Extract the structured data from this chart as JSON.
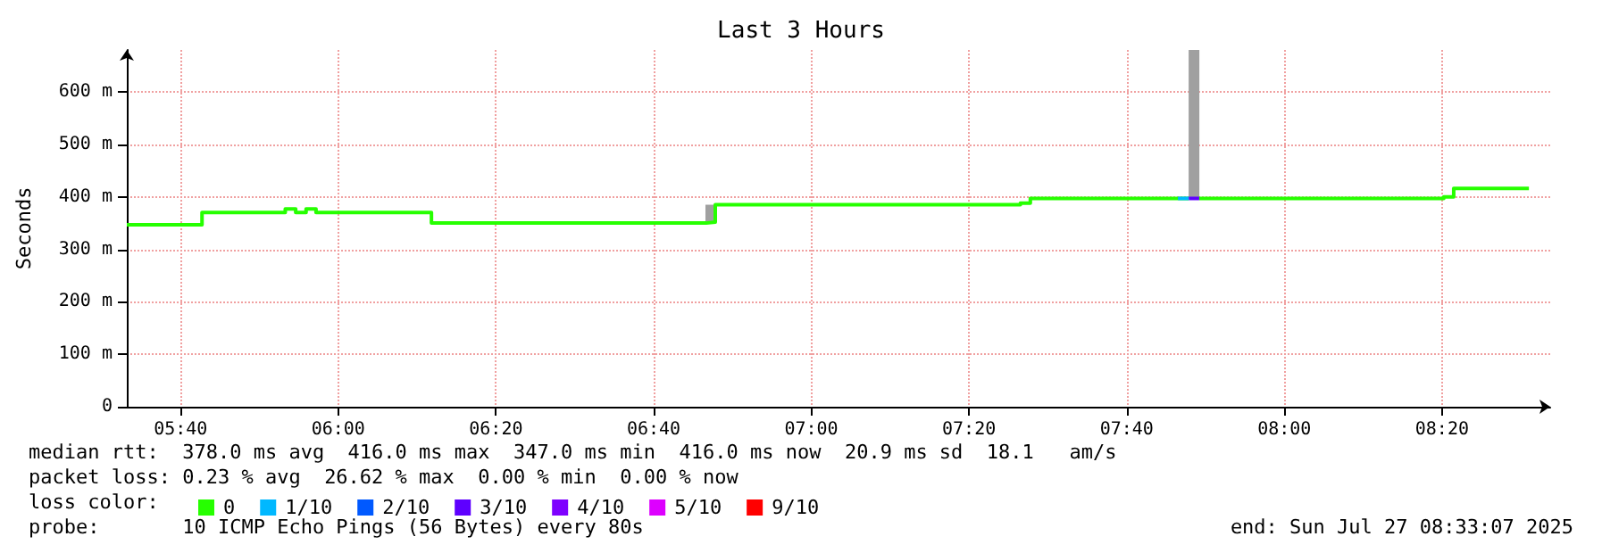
{
  "chart_data": {
    "type": "step",
    "title": "Last 3 Hours",
    "ylabel": "Seconds",
    "legend_title": "loss color:",
    "xlim": [
      5.553,
      8.562
    ],
    "xticks": [
      {
        "value": 5.6667,
        "label": "05:40"
      },
      {
        "value": 6,
        "label": "06:00"
      },
      {
        "value": 6.3333,
        "label": "06:20"
      },
      {
        "value": 6.6667,
        "label": "06:40"
      },
      {
        "value": 7,
        "label": "07:00"
      },
      {
        "value": 7.3333,
        "label": "07:20"
      },
      {
        "value": 7.6667,
        "label": "07:40"
      },
      {
        "value": 8,
        "label": "08:00"
      },
      {
        "value": 8.3333,
        "label": "08:20"
      }
    ],
    "ylim": [
      0,
      680
    ],
    "yticks": [
      0,
      {
        "value": 100,
        "label": "100 m"
      },
      {
        "value": 200,
        "label": "200 m"
      },
      {
        "value": 300,
        "label": "300 m"
      },
      {
        "value": 400,
        "label": "400 m"
      },
      {
        "value": 500,
        "label": "500 m"
      },
      {
        "value": 600,
        "label": "600 m"
      }
    ],
    "grid": true,
    "legend": "bottom left",
    "series": [
      {
        "name": "0",
        "color": "#26ff00",
        "x": [
          5.553,
          5.712,
          5.888,
          5.91,
          5.932,
          5.953,
          6.197,
          6.778,
          6.797,
          7.442,
          7.463,
          7.775,
          7.798,
          7.82,
          8.337,
          8.358,
          8.517
        ],
        "values": [
          347,
          370,
          377,
          370,
          377,
          370,
          350,
          352,
          385,
          388,
          397,
          397,
          null,
          397,
          400,
          416,
          416
        ]
      },
      {
        "name": "1/10",
        "color": "#00b8ff",
        "x": [
          7.775,
          7.798
        ],
        "values": [
          397,
          397
        ]
      },
      {
        "name": "2/10",
        "color": "#0059ff"
      },
      {
        "name": "3/10",
        "color": "#5e00ff",
        "x": [
          7.798,
          7.82
        ],
        "values": [
          397,
          397
        ]
      },
      {
        "name": "4/10",
        "color": "#7e00ff"
      },
      {
        "name": "5/10",
        "color": "#dd00ff"
      },
      {
        "name": "9/10",
        "color": "#ff0000"
      },
      {
        "type": "bar",
        "color": "#a0a0a0",
        "x": [
          6.7875,
          7.809
        ],
        "base": [
          352,
          397
        ],
        "values": [
          33,
          283
        ]
      }
    ],
    "annotations": [
      "median rtt:  378.0 ms avg  416.0 ms max  347.0 ms min  416.0 ms now  20.9 ms sd  18.1   am/s",
      "packet loss: 0.23 % avg  26.62 % max  0.00 % min  0.00 % now",
      "probe:       10 ICMP Echo Pings (56 Bytes) every 80s",
      "end: Sun Jul 27 08:33:07 2025"
    ]
  }
}
